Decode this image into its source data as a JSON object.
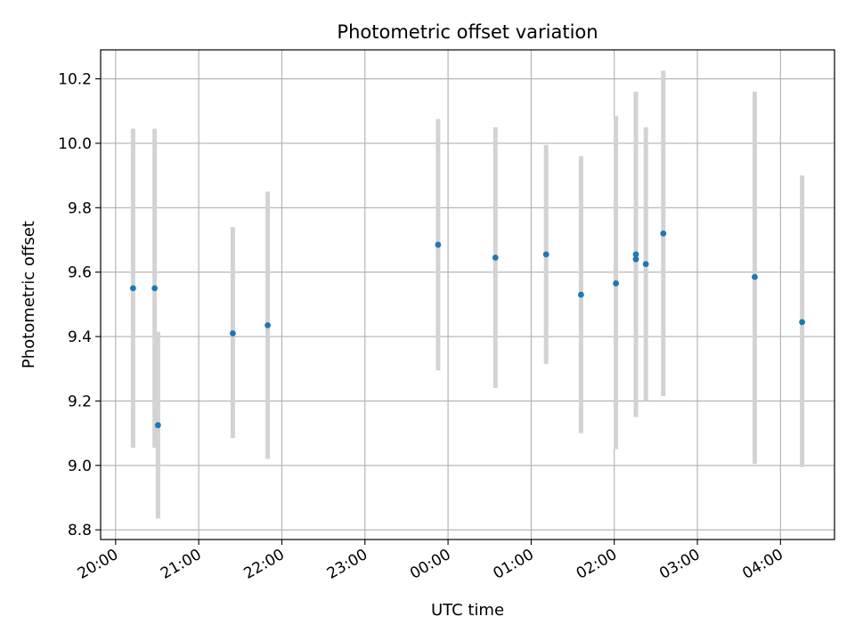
{
  "chart_data": {
    "type": "scatter",
    "title": "Photometric offset variation",
    "xlabel": "UTC time",
    "ylabel": "Photometric offset",
    "x_ticks": [
      {
        "hour": 0,
        "label": "20:00"
      },
      {
        "hour": 1,
        "label": "21:00"
      },
      {
        "hour": 2,
        "label": "22:00"
      },
      {
        "hour": 3,
        "label": "23:00"
      },
      {
        "hour": 4,
        "label": "00:00"
      },
      {
        "hour": 5,
        "label": "01:00"
      },
      {
        "hour": 6,
        "label": "02:00"
      },
      {
        "hour": 7,
        "label": "03:00"
      },
      {
        "hour": 8,
        "label": "04:00"
      }
    ],
    "y_ticks": [
      8.8,
      9.0,
      9.2,
      9.4,
      9.6,
      9.8,
      10.0,
      10.2
    ],
    "xlim_hours": [
      -0.18,
      8.65
    ],
    "ylim": [
      8.77,
      10.29
    ],
    "grid": true,
    "colors": {
      "marker": "#1f77b4",
      "errorbar": "#d3d3d3",
      "grid": "#b0b0b0"
    },
    "points": [
      {
        "t": 0.21,
        "y": 9.55,
        "low": 9.055,
        "high": 10.045
      },
      {
        "t": 0.47,
        "y": 9.55,
        "low": 9.055,
        "high": 10.045
      },
      {
        "t": 0.51,
        "y": 9.125,
        "low": 8.835,
        "high": 9.415
      },
      {
        "t": 1.41,
        "y": 9.41,
        "low": 9.085,
        "high": 9.74
      },
      {
        "t": 1.83,
        "y": 9.435,
        "low": 9.02,
        "high": 9.85
      },
      {
        "t": 3.88,
        "y": 9.685,
        "low": 9.295,
        "high": 10.075
      },
      {
        "t": 4.57,
        "y": 9.645,
        "low": 9.24,
        "high": 10.05
      },
      {
        "t": 5.18,
        "y": 9.655,
        "low": 9.315,
        "high": 9.995
      },
      {
        "t": 5.6,
        "y": 9.53,
        "low": 9.1,
        "high": 9.96
      },
      {
        "t": 6.02,
        "y": 9.565,
        "low": 9.05,
        "high": 10.085
      },
      {
        "t": 6.26,
        "y": 9.655,
        "low": 9.15,
        "high": 10.16
      },
      {
        "t": 6.26,
        "y": 9.64,
        "low": 9.15,
        "high": 10.16
      },
      {
        "t": 6.38,
        "y": 9.625,
        "low": 9.2,
        "high": 10.05
      },
      {
        "t": 6.59,
        "y": 9.72,
        "low": 9.215,
        "high": 10.225
      },
      {
        "t": 7.69,
        "y": 9.585,
        "low": 9.005,
        "high": 10.16
      },
      {
        "t": 8.26,
        "y": 9.445,
        "low": 8.995,
        "high": 9.9
      }
    ]
  }
}
